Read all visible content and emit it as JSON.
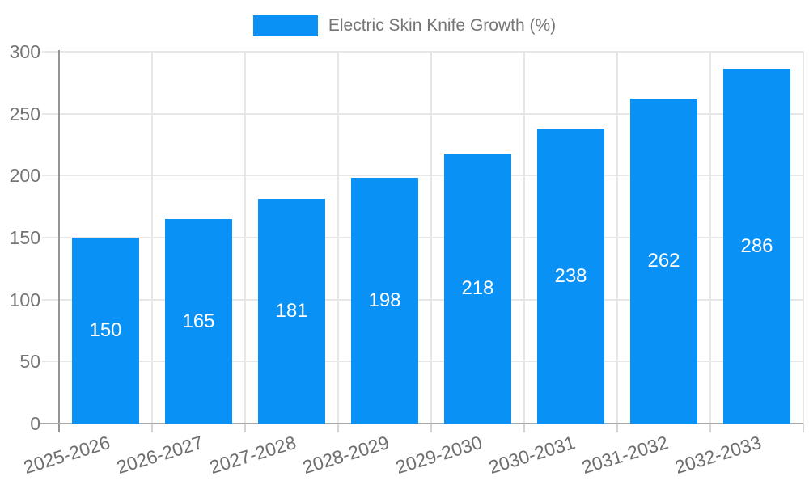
{
  "chart_data": {
    "type": "bar",
    "title": "",
    "legend": {
      "label": "Electric Skin Knife Growth (%)",
      "position": "top"
    },
    "categories": [
      "2025-2026",
      "2026-2027",
      "2027-2028",
      "2028-2029",
      "2029-2030",
      "2030-2031",
      "2031-2032",
      "2032-2033"
    ],
    "values": [
      150,
      165,
      181,
      198,
      218,
      238,
      262,
      286
    ],
    "value_labels_inside_bars": true,
    "xlabel": "",
    "ylabel": "",
    "ylim": [
      0,
      300
    ],
    "yticks": [
      0,
      50,
      100,
      150,
      200,
      250,
      300
    ],
    "grid": true,
    "colors": {
      "bar": "#0991F5",
      "bar_value_text": "#ffffff",
      "grid_line": "#e7e7e7",
      "tick_mark": "#d4d4d4",
      "y_axis_line": "#949494",
      "x_axis_line": "#a9a9a9",
      "axis_text": "#757575",
      "legend_text": "#757575",
      "background": "#ffffff"
    }
  }
}
